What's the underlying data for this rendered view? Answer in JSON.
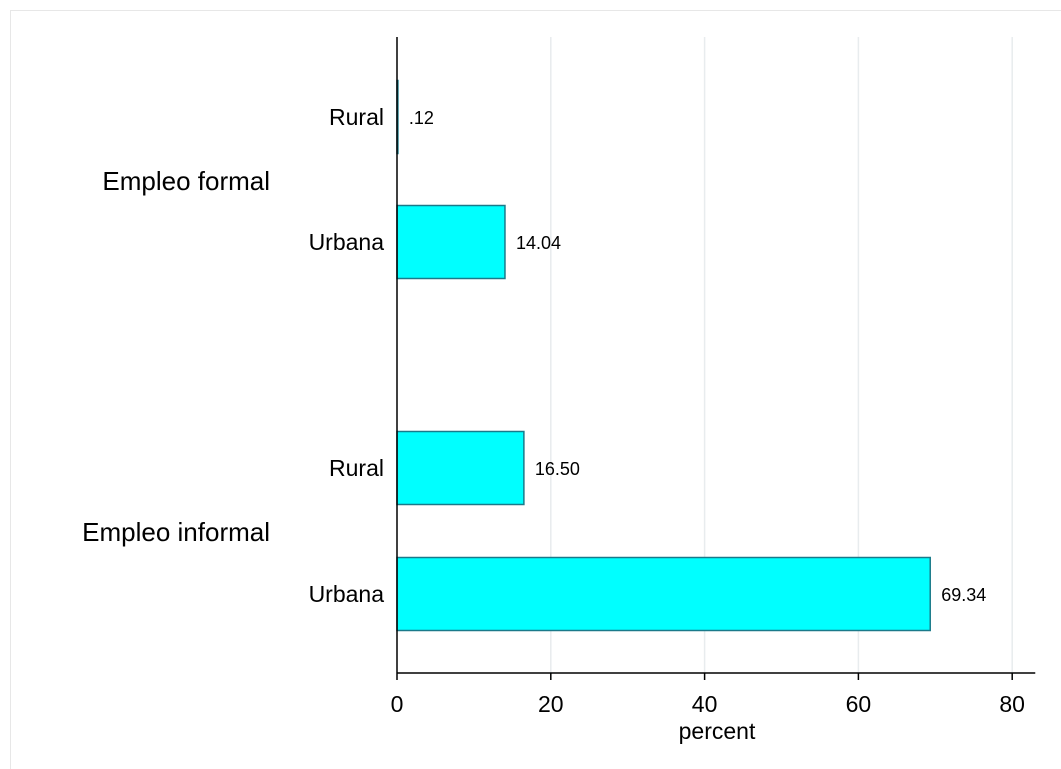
{
  "chart_data": {
    "type": "bar",
    "orientation": "horizontal",
    "groups": [
      {
        "label": "Empleo formal",
        "bars": [
          {
            "label": "Rural",
            "value": 0.12,
            "value_label": ".12"
          },
          {
            "label": "Urbana",
            "value": 14.04,
            "value_label": "14.04"
          }
        ]
      },
      {
        "label": "Empleo informal",
        "bars": [
          {
            "label": "Rural",
            "value": 16.5,
            "value_label": "16.50"
          },
          {
            "label": "Urbana",
            "value": 69.34,
            "value_label": "69.34"
          }
        ]
      }
    ],
    "xlabel": "percent",
    "xticks": [
      0,
      20,
      40,
      60,
      80
    ],
    "xlim": [
      0,
      83
    ],
    "grid": "vertical",
    "colors": {
      "bar_fill": "#00ffff",
      "bar_stroke": "#1a7a8a",
      "grid": "#e8ecee",
      "axis": "#000000"
    }
  }
}
